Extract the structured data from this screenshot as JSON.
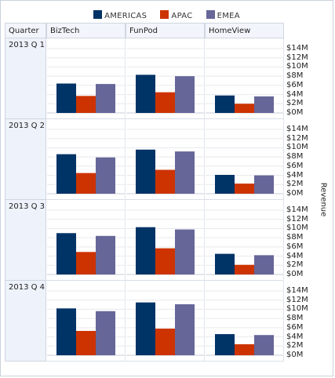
{
  "chart_data": {
    "type": "bar",
    "title": "",
    "row_header_label": "Quarter",
    "ylabel": "Revenue",
    "ylim": [
      0,
      14
    ],
    "y_unit": "M",
    "y_ticks": [
      "$14M",
      "$12M",
      "$10M",
      "$8M",
      "$6M",
      "$4M",
      "$2M",
      "$0M"
    ],
    "legend_position": "top",
    "columns": [
      "BizTech",
      "FunPod",
      "HomeView"
    ],
    "rows": [
      "2013 Q 1",
      "2013 Q 2",
      "2013 Q 3",
      "2013 Q 4"
    ],
    "series": [
      {
        "name": "AMERICAS",
        "color": "#003366"
      },
      {
        "name": "APAC",
        "color": "#cc3300"
      },
      {
        "name": "EMEA",
        "color": "#666699"
      }
    ],
    "values": {
      "2013 Q 1": {
        "BizTech": [
          6.4,
          3.7,
          6.3
        ],
        "FunPod": [
          8.3,
          4.5,
          8.0
        ],
        "HomeView": [
          3.8,
          2.0,
          3.6
        ]
      },
      "2013 Q 2": {
        "BizTech": [
          8.6,
          4.5,
          7.9
        ],
        "FunPod": [
          9.6,
          5.2,
          9.2
        ],
        "HomeView": [
          4.1,
          2.2,
          4.0
        ]
      },
      "2013 Q 3": {
        "BizTech": [
          9.0,
          4.9,
          8.4
        ],
        "FunPod": [
          10.3,
          5.7,
          9.8
        ],
        "HomeView": [
          4.5,
          2.1,
          4.2
        ]
      },
      "2013 Q 4": {
        "BizTech": [
          10.2,
          5.3,
          9.6
        ],
        "FunPod": [
          11.5,
          5.8,
          11.1
        ],
        "HomeView": [
          4.6,
          2.4,
          4.4
        ]
      }
    }
  }
}
